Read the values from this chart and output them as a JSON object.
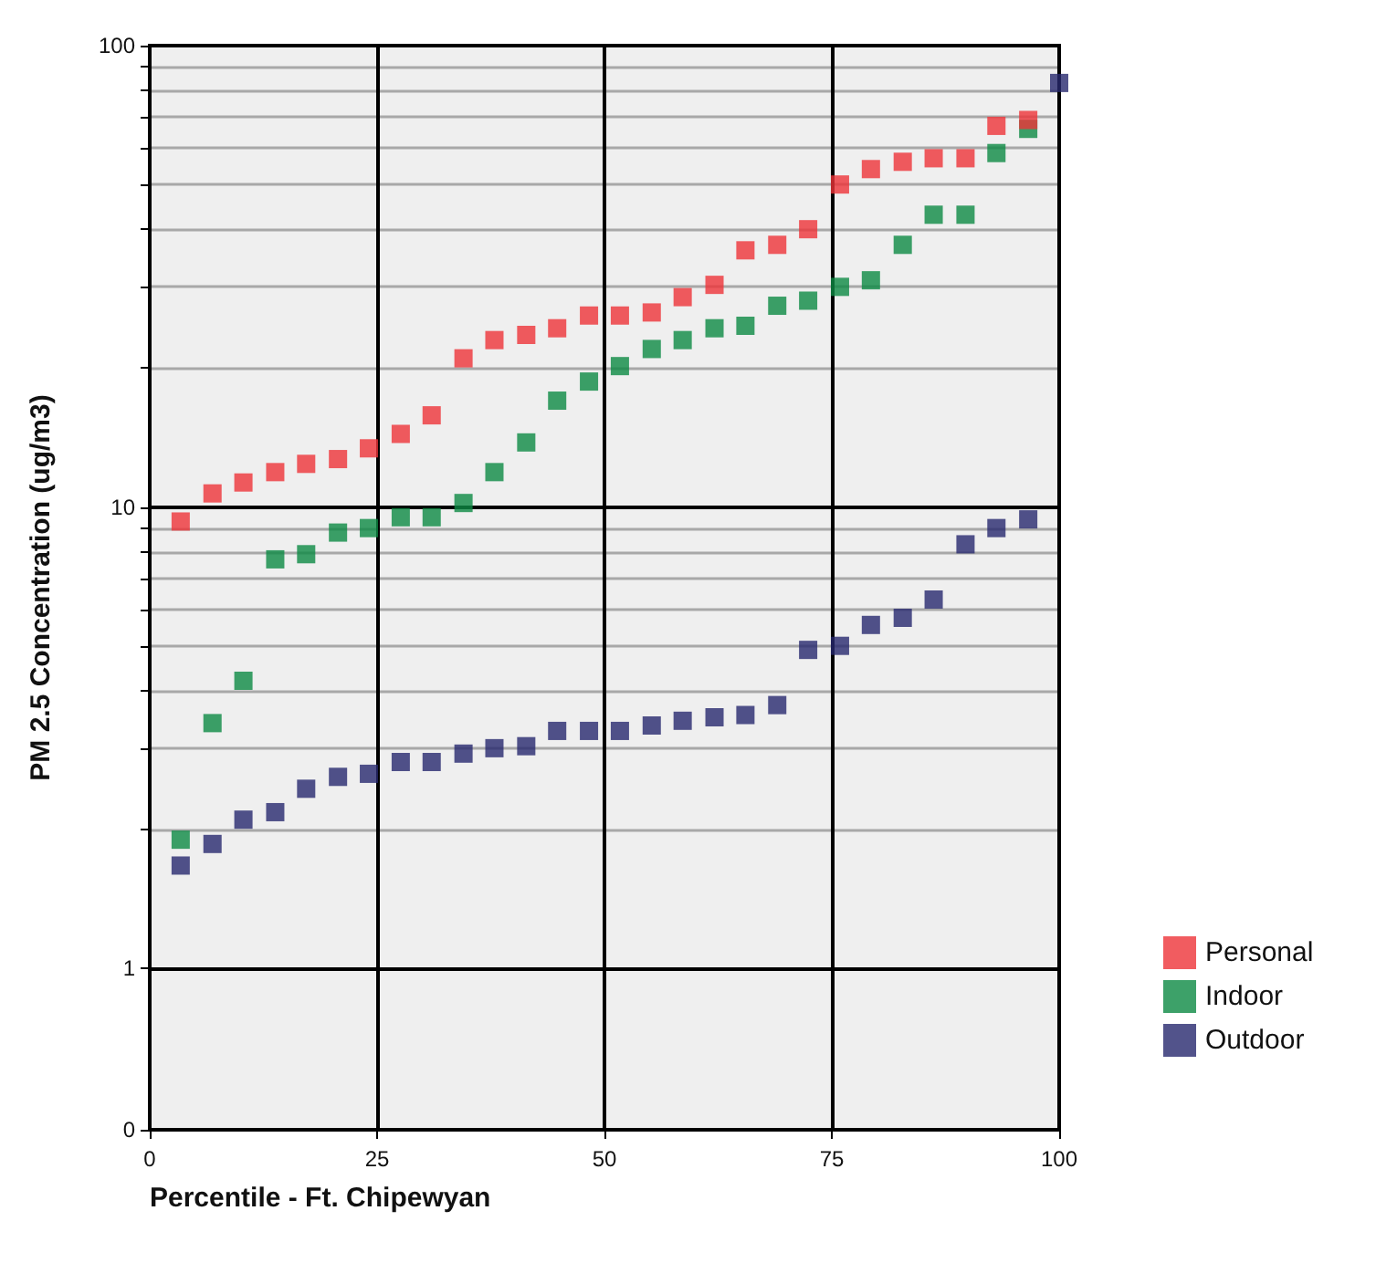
{
  "chart_data": {
    "type": "scatter",
    "xlabel": "Percentile - Ft. Chipewyan",
    "ylabel": "PM 2.5 Concentration (ug/m3)",
    "x": [
      3.4,
      6.9,
      10.3,
      13.8,
      17.2,
      20.7,
      24.1,
      27.6,
      31.0,
      34.5,
      37.9,
      41.4,
      44.8,
      48.3,
      51.7,
      55.2,
      58.6,
      62.1,
      65.5,
      69.0,
      72.4,
      75.9,
      79.3,
      82.8,
      86.2,
      89.7,
      93.1,
      96.6
    ],
    "series": [
      {
        "name": "Personal",
        "color": "#ee3338",
        "values": [
          9.3,
          10.7,
          11.3,
          11.9,
          12.4,
          12.7,
          13.4,
          14.4,
          15.8,
          21,
          23,
          23.6,
          24.4,
          26,
          26,
          26.4,
          28.5,
          30.3,
          36,
          37,
          40,
          50,
          54,
          56,
          57,
          57,
          67,
          69
        ]
      },
      {
        "name": "Indoor",
        "color": "#0c8a44",
        "values": [
          1.9,
          3.4,
          4.2,
          7.7,
          7.9,
          8.8,
          9.0,
          9.5,
          9.5,
          10.2,
          11.9,
          13.8,
          17,
          18.7,
          20.2,
          22,
          23,
          24.4,
          24.7,
          27.3,
          28,
          30,
          31,
          37,
          43,
          43,
          58.5,
          66
        ]
      },
      {
        "name": "Outdoor",
        "color": "#27286e",
        "x": [
          3.4,
          6.9,
          10.3,
          13.8,
          17.2,
          20.7,
          24.1,
          27.6,
          31.0,
          34.5,
          37.9,
          41.4,
          44.8,
          48.3,
          51.7,
          55.2,
          58.6,
          62.1,
          65.5,
          69.0,
          72.4,
          75.9,
          79.3,
          82.8,
          86.2,
          89.7,
          93.1,
          96.6,
          100
        ],
        "values": [
          1.67,
          1.86,
          2.1,
          2.18,
          2.45,
          2.6,
          2.64,
          2.8,
          2.8,
          2.92,
          3.0,
          3.03,
          3.27,
          3.27,
          3.27,
          3.36,
          3.44,
          3.5,
          3.54,
          3.72,
          4.9,
          5.0,
          5.55,
          5.75,
          6.3,
          8.3,
          9.0,
          9.4,
          83
        ]
      }
    ],
    "xlim": [
      0,
      100
    ],
    "xticks": [
      0,
      25,
      50,
      75,
      100
    ],
    "ylim": [
      0,
      100
    ],
    "yticks": [
      0,
      1,
      {
        "value": 2,
        "label": null
      },
      {
        "value": 3,
        "label": null
      },
      {
        "value": 4,
        "label": null
      },
      {
        "value": 5,
        "label": null
      },
      {
        "value": 6,
        "label": null
      },
      {
        "value": 7,
        "label": null
      },
      {
        "value": 8,
        "label": null
      },
      {
        "value": 9,
        "label": null
      },
      10,
      {
        "value": 20,
        "label": null
      },
      {
        "value": 30,
        "label": null
      },
      {
        "value": 40,
        "label": null
      },
      {
        "value": 50,
        "label": null
      },
      {
        "value": 60,
        "label": null
      },
      {
        "value": 70,
        "label": null
      },
      {
        "value": 80,
        "label": null
      },
      {
        "value": 90,
        "label": null
      },
      100
    ],
    "log": true,
    "grid": true,
    "legend": "right",
    "marker": "square"
  }
}
